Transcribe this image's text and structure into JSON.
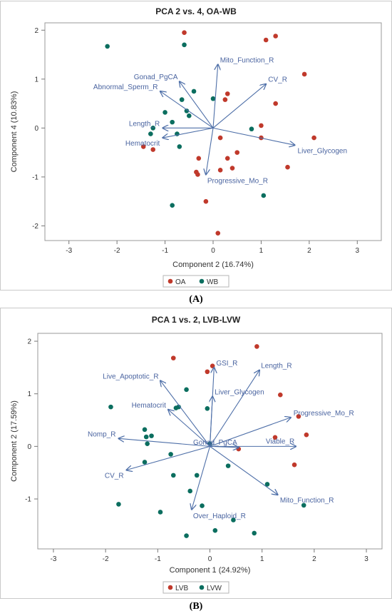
{
  "colors": {
    "red": "#c0392b",
    "teal": "#0b6e5f",
    "arrow": "#4e6fa8",
    "arrowText": "#4a64a0"
  },
  "chart_data": [
    {
      "type": "scatter",
      "panel": "A",
      "title": "PCA 2 vs. 4, OA-WB",
      "xlabel": "Component 2 (16.74%)",
      "ylabel": "Component 4 (10.83%)",
      "xlim": [
        -3.5,
        3.5
      ],
      "ylim": [
        -2.3,
        2.15
      ],
      "xticks": [
        -3,
        -2,
        -1,
        0,
        1,
        2,
        3
      ],
      "yticks": [
        -2,
        -1,
        0,
        1,
        2
      ],
      "legend_placement": "bottom",
      "series": [
        {
          "name": "OA",
          "color": "#c0392b",
          "points": [
            [
              -0.6,
              1.95
            ],
            [
              1.1,
              1.8
            ],
            [
              1.3,
              1.88
            ],
            [
              1.9,
              1.1
            ],
            [
              0.3,
              0.7
            ],
            [
              0.25,
              0.58
            ],
            [
              1.3,
              0.5
            ],
            [
              1.0,
              0.05
            ],
            [
              1.0,
              -0.2
            ],
            [
              2.1,
              -0.2
            ],
            [
              0.15,
              -0.2
            ],
            [
              -1.45,
              -0.38
            ],
            [
              -1.25,
              -0.44
            ],
            [
              0.5,
              -0.5
            ],
            [
              -0.3,
              -0.62
            ],
            [
              0.3,
              -0.62
            ],
            [
              0.4,
              -0.82
            ],
            [
              0.15,
              -0.86
            ],
            [
              -0.35,
              -0.9
            ],
            [
              -0.32,
              -0.95
            ],
            [
              1.55,
              -0.8
            ],
            [
              -0.15,
              -1.5
            ],
            [
              0.1,
              -2.15
            ]
          ]
        },
        {
          "name": "WB",
          "color": "#0b6e5f",
          "points": [
            [
              -2.2,
              1.67
            ],
            [
              -0.6,
              1.7
            ],
            [
              -0.4,
              0.75
            ],
            [
              -0.65,
              0.58
            ],
            [
              0.0,
              0.6
            ],
            [
              -0.55,
              0.35
            ],
            [
              -0.5,
              0.25
            ],
            [
              -1.0,
              0.32
            ],
            [
              -0.85,
              0.12
            ],
            [
              -1.25,
              0.0
            ],
            [
              -1.3,
              -0.12
            ],
            [
              -0.75,
              -0.12
            ],
            [
              0.8,
              -0.02
            ],
            [
              -0.7,
              -0.38
            ],
            [
              1.05,
              -1.38
            ],
            [
              -0.85,
              -1.58
            ]
          ]
        }
      ],
      "loadings": [
        {
          "label": "Mito_Function_R",
          "x": 0.1,
          "y": 1.3
        },
        {
          "label": "CV_R",
          "x": 1.1,
          "y": 0.9
        },
        {
          "label": "Gonad_PgCA",
          "x": -0.7,
          "y": 0.95
        },
        {
          "label": "Abnormal_Sperm_R",
          "x": -1.1,
          "y": 0.75
        },
        {
          "label": "Length_R",
          "x": -1.05,
          "y": 0.0
        },
        {
          "label": "Hematocrit",
          "x": -1.05,
          "y": -0.2
        },
        {
          "label": "Liver_Glycogen",
          "x": 1.7,
          "y": -0.35
        },
        {
          "label": "Progressive_Mo_R",
          "x": -0.15,
          "y": -0.95
        }
      ]
    },
    {
      "type": "scatter",
      "panel": "B",
      "title": "PCA 1 vs. 2, LVB-LVW",
      "xlabel": "Component 1 (24.92%)",
      "ylabel": "Component 2 (17.59%)",
      "xlim": [
        -3.3,
        3.3
      ],
      "ylim": [
        -1.95,
        2.15
      ],
      "xticks": [
        -3,
        -2,
        -1,
        0,
        1,
        2,
        3
      ],
      "yticks": [
        -1,
        0,
        1,
        2
      ],
      "legend_placement": "bottom",
      "series": [
        {
          "name": "LVB",
          "color": "#c0392b",
          "points": [
            [
              -0.7,
              1.68
            ],
            [
              0.05,
              1.53
            ],
            [
              -0.05,
              1.42
            ],
            [
              0.9,
              1.9
            ],
            [
              1.35,
              0.98
            ],
            [
              1.7,
              0.57
            ],
            [
              1.85,
              0.22
            ],
            [
              1.25,
              0.17
            ],
            [
              1.62,
              -0.35
            ],
            [
              0.55,
              -0.05
            ]
          ]
        },
        {
          "name": "LVW",
          "color": "#0b6e5f",
          "points": [
            [
              -0.45,
              1.08
            ],
            [
              -1.9,
              0.75
            ],
            [
              -0.65,
              0.73
            ],
            [
              -0.6,
              0.75
            ],
            [
              -0.05,
              0.72
            ],
            [
              -1.25,
              0.32
            ],
            [
              -1.22,
              0.18
            ],
            [
              -1.12,
              0.2
            ],
            [
              -1.2,
              0.05
            ],
            [
              0.0,
              0.05
            ],
            [
              -0.75,
              -0.15
            ],
            [
              -1.25,
              -0.3
            ],
            [
              0.35,
              -0.37
            ],
            [
              -0.7,
              -0.55
            ],
            [
              -0.25,
              -0.55
            ],
            [
              -0.38,
              -0.85
            ],
            [
              1.1,
              -0.72
            ],
            [
              1.8,
              -1.12
            ],
            [
              -1.75,
              -1.1
            ],
            [
              -0.15,
              -1.13
            ],
            [
              -0.95,
              -1.25
            ],
            [
              0.45,
              -1.4
            ],
            [
              -0.45,
              -1.7
            ],
            [
              0.1,
              -1.6
            ],
            [
              0.85,
              -1.65
            ]
          ]
        }
      ],
      "loadings": [
        {
          "label": "GSI_R",
          "x": 0.08,
          "y": 1.5
        },
        {
          "label": "Length_R",
          "x": 0.95,
          "y": 1.45
        },
        {
          "label": "Live_Apoptotic_R",
          "x": -0.95,
          "y": 1.25
        },
        {
          "label": "Liver_Glycogen",
          "x": 0.05,
          "y": 0.95
        },
        {
          "label": "Hematocrit",
          "x": -0.8,
          "y": 0.7
        },
        {
          "label": "Progressive_Mo_R",
          "x": 1.55,
          "y": 0.55
        },
        {
          "label": "Viable_R",
          "x": 1.65,
          "y": 0.0
        },
        {
          "label": "Gonad_PgCA",
          "x": 0.55,
          "y": -0.02
        },
        {
          "label": "Nomp_R",
          "x": -1.75,
          "y": 0.15
        },
        {
          "label": "CV_R",
          "x": -1.6,
          "y": -0.45
        },
        {
          "label": "Mito_Function_R",
          "x": 1.3,
          "y": -0.92
        },
        {
          "label": "Over_Haploid_R",
          "x": -0.35,
          "y": -1.2
        }
      ]
    }
  ],
  "panel_labels": {
    "a": "(A)",
    "b": "(B)"
  }
}
